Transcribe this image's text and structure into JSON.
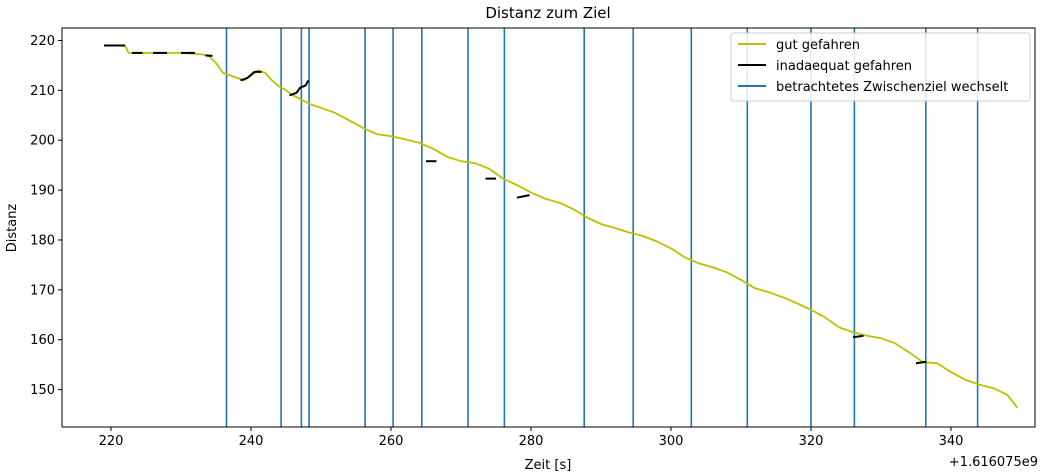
{
  "chart_data": {
    "type": "line",
    "title": "Distanz zum Ziel",
    "xlabel": "Zeit [s]",
    "ylabel": "Distanz",
    "x_offset_label": "+1.616075e9",
    "xlim": [
      213,
      352
    ],
    "ylim": [
      142.5,
      222.5
    ],
    "xticks": [
      220,
      240,
      260,
      280,
      300,
      320,
      340
    ],
    "yticks": [
      150,
      160,
      170,
      180,
      190,
      200,
      210,
      220
    ],
    "colors": {
      "good": "#bfbf00",
      "bad": "#000000",
      "switch": "#1f77b4"
    },
    "legend_position": "upper right",
    "legend": [
      {
        "label": "gut gefahren",
        "color": "#bfbf00",
        "kind": "line"
      },
      {
        "label": "inadaequat gefahren",
        "color": "#000000",
        "kind": "line"
      },
      {
        "label": "betrachtetes Zwischenziel wechselt",
        "color": "#1f77b4",
        "kind": "line"
      }
    ],
    "series": [
      {
        "name": "gut gefahren",
        "points": [
          [
            219,
            219
          ],
          [
            220,
            219
          ],
          [
            222,
            219
          ],
          [
            222.5,
            217.5
          ],
          [
            225,
            217.5
          ],
          [
            230,
            217.5
          ],
          [
            233,
            217.2
          ],
          [
            234,
            216.8
          ],
          [
            235,
            215.5
          ],
          [
            236,
            213.5
          ],
          [
            237,
            213
          ],
          [
            238,
            212.5
          ],
          [
            239,
            212
          ],
          [
            240,
            213
          ],
          [
            241,
            214
          ],
          [
            242,
            213.5
          ],
          [
            243,
            212
          ],
          [
            244,
            210.8
          ],
          [
            245,
            210
          ],
          [
            246,
            209
          ],
          [
            248.5,
            207.2
          ],
          [
            250,
            206.5
          ],
          [
            252,
            205.5
          ],
          [
            254,
            204
          ],
          [
            256,
            202.5
          ],
          [
            258,
            201.2
          ],
          [
            260,
            200.8
          ],
          [
            262,
            200.2
          ],
          [
            264,
            199.5
          ],
          [
            266,
            198.3
          ],
          [
            268,
            196.7
          ],
          [
            270,
            195.8
          ],
          [
            272,
            195.4
          ],
          [
            274,
            194.3
          ],
          [
            276,
            192.3
          ],
          [
            278,
            191
          ],
          [
            280,
            189.5
          ],
          [
            282,
            188.3
          ],
          [
            284,
            187.5
          ],
          [
            286,
            186.2
          ],
          [
            288,
            184.5
          ],
          [
            290,
            183.2
          ],
          [
            292,
            182.4
          ],
          [
            294,
            181.5
          ],
          [
            296,
            180.8
          ],
          [
            298,
            179.7
          ],
          [
            300,
            178.3
          ],
          [
            302,
            176.5
          ],
          [
            304,
            175.3
          ],
          [
            306,
            174.5
          ],
          [
            308,
            173.5
          ],
          [
            310,
            172
          ],
          [
            312,
            170.3
          ],
          [
            314,
            169.5
          ],
          [
            316,
            168.5
          ],
          [
            318,
            167.3
          ],
          [
            320,
            166
          ],
          [
            322,
            164.5
          ],
          [
            324,
            162.5
          ],
          [
            326,
            161.5
          ],
          [
            328,
            160.8
          ],
          [
            330,
            160.3
          ],
          [
            332,
            159.3
          ],
          [
            334,
            157.5
          ],
          [
            336,
            155.5
          ],
          [
            338,
            155.3
          ],
          [
            340,
            153.5
          ],
          [
            342,
            152
          ],
          [
            344,
            151
          ],
          [
            346,
            150.3
          ],
          [
            348,
            149
          ],
          [
            349.5,
            146.3
          ]
        ]
      },
      {
        "name": "inadaequat gefahren",
        "segments": [
          [
            [
              219,
              219
            ],
            [
              222,
              219
            ]
          ],
          [
            [
              223,
              217.5
            ],
            [
              224.5,
              217.5
            ]
          ],
          [
            [
              226,
              217.5
            ],
            [
              228,
              217.5
            ]
          ],
          [
            [
              230,
              217.5
            ],
            [
              232,
              217.5
            ]
          ],
          [
            [
              233.5,
              217
            ],
            [
              234.5,
              216.9
            ]
          ],
          [
            [
              238.5,
              212
            ],
            [
              239.5,
              212.5
            ],
            [
              240.5,
              213.7
            ],
            [
              241.5,
              213.7
            ]
          ],
          [
            [
              245.5,
              209
            ],
            [
              246.5,
              209.5
            ],
            [
              247,
              210.5
            ],
            [
              247.8,
              211
            ],
            [
              248.2,
              212
            ]
          ],
          [
            [
              265,
              195.8
            ],
            [
              266.5,
              195.8
            ]
          ],
          [
            [
              273.5,
              192.3
            ],
            [
              275,
              192.3
            ]
          ],
          [
            [
              278,
              188.5
            ],
            [
              279.8,
              189
            ]
          ],
          [
            [
              326,
              160.5
            ],
            [
              327.5,
              160.8
            ]
          ],
          [
            [
              335,
              155.3
            ],
            [
              336.5,
              155.6
            ]
          ]
        ]
      }
    ],
    "switch_times": [
      236.5,
      244.3,
      247.2,
      248.3,
      256.3,
      260.3,
      264.4,
      271,
      276.2,
      287.6,
      294.6,
      302.9,
      310.9,
      320,
      326.2,
      336.4,
      343.8
    ]
  }
}
